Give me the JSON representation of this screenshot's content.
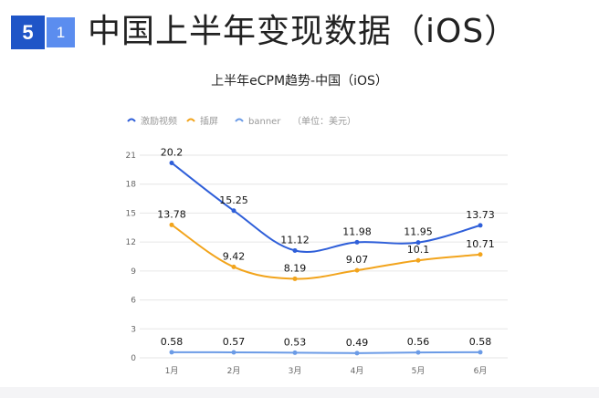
{
  "header": {
    "section_number": "5",
    "sub_number": "1",
    "title": "中国上半年变现数据（iOS）"
  },
  "chart_data": {
    "type": "line",
    "title": "上半年eCPM趋势-中国（iOS）",
    "unit_note": "（单位：美元）",
    "categories": [
      "1月",
      "2月",
      "3月",
      "4月",
      "5月",
      "6月"
    ],
    "series": [
      {
        "name": "激励视频",
        "color": "#2f5fd9",
        "values": [
          20.2,
          15.25,
          11.12,
          11.98,
          11.95,
          13.73
        ]
      },
      {
        "name": "插屏",
        "color": "#f2a41c",
        "values": [
          13.78,
          9.42,
          8.19,
          9.07,
          10.1,
          10.71
        ]
      },
      {
        "name": "banner",
        "color": "#6b9be6",
        "values": [
          0.58,
          0.57,
          0.53,
          0.49,
          0.56,
          0.58
        ]
      }
    ],
    "ylim": [
      0,
      21
    ],
    "yticks": [
      0,
      3,
      6,
      9,
      12,
      15,
      18,
      21
    ],
    "grid": true,
    "legend": "top-left",
    "smooth": true
  }
}
